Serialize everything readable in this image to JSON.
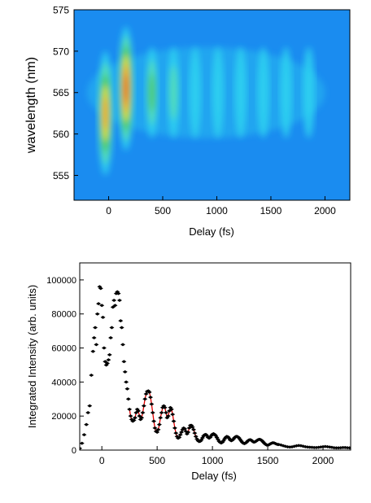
{
  "chart_data": [
    {
      "type": "heatmap",
      "xlabel": "Delay (fs)",
      "ylabel": "wavelength (nm)",
      "xlim": [
        -320,
        2230
      ],
      "ylim": [
        552,
        575
      ],
      "xticks": [
        "0",
        "500",
        "1000",
        "1500",
        "2000"
      ],
      "xtick_values": [
        0,
        500,
        1000,
        1500,
        2000
      ],
      "yticks": [
        "555",
        "560",
        "565",
        "570",
        "575"
      ],
      "ytick_values": [
        555,
        560,
        565,
        570,
        575
      ],
      "colormap": [
        "#1a8cf0",
        "#2fd5f0",
        "#5be0a8",
        "#4ec23a",
        "#ffe000",
        "#ff8800",
        "#e81a00"
      ],
      "background_color": "#1a8cf0",
      "spectral_center_nm": 565,
      "oscillation_period_fs": 210,
      "intensity_peaks": [
        {
          "delay": -30,
          "wavelength": 562.5,
          "intensity": 0.8
        },
        {
          "delay": 160,
          "wavelength": 565.5,
          "intensity": 1.0
        },
        {
          "delay": 400,
          "wavelength": 565,
          "intensity": 0.42
        },
        {
          "delay": 600,
          "wavelength": 565,
          "intensity": 0.32
        },
        {
          "delay": 800,
          "wavelength": 565,
          "intensity": 0.22
        },
        {
          "delay": 1010,
          "wavelength": 565,
          "intensity": 0.16
        },
        {
          "delay": 1220,
          "wavelength": 565,
          "intensity": 0.13
        },
        {
          "delay": 1430,
          "wavelength": 565,
          "intensity": 0.1
        },
        {
          "delay": 1640,
          "wavelength": 565,
          "intensity": 0.08
        },
        {
          "delay": 1850,
          "wavelength": 565,
          "intensity": 0.06
        }
      ]
    },
    {
      "type": "scatter",
      "xlabel": "Delay (fs)",
      "ylabel": "Integrated Intensity (arb. units)",
      "xlim": [
        -200,
        2250
      ],
      "ylim": [
        0,
        110000
      ],
      "xticks": [
        "0",
        "500",
        "1000",
        "1500",
        "2000"
      ],
      "xtick_values": [
        0,
        500,
        1000,
        1500,
        2000
      ],
      "yticks": [
        "0",
        "20000",
        "40000",
        "60000",
        "80000",
        "100000"
      ],
      "ytick_values": [
        0,
        20000,
        40000,
        60000,
        80000,
        100000
      ],
      "marker_color": "#000000",
      "fit_color": "#e00000",
      "points": [
        [
          -200,
          1000
        ],
        [
          -180,
          4000
        ],
        [
          -160,
          9000
        ],
        [
          -140,
          15000
        ],
        [
          -125,
          22000
        ],
        [
          -110,
          26000
        ],
        [
          -95,
          44000
        ],
        [
          -80,
          58000
        ],
        [
          -70,
          66000
        ],
        [
          -60,
          72000
        ],
        [
          -50,
          62000
        ],
        [
          -40,
          80000
        ],
        [
          -30,
          86000
        ],
        [
          -20,
          96000
        ],
        [
          -10,
          95000
        ],
        [
          0,
          85000
        ],
        [
          10,
          78000
        ],
        [
          20,
          60000
        ],
        [
          30,
          52000
        ],
        [
          40,
          50000
        ],
        [
          50,
          51000
        ],
        [
          60,
          53000
        ],
        [
          70,
          56000
        ],
        [
          80,
          66000
        ],
        [
          90,
          72000
        ],
        [
          100,
          84000
        ],
        [
          110,
          88000
        ],
        [
          120,
          85000
        ],
        [
          130,
          92000
        ],
        [
          140,
          93000
        ],
        [
          150,
          92000
        ],
        [
          160,
          88000
        ],
        [
          170,
          76000
        ],
        [
          180,
          72000
        ],
        [
          190,
          62000
        ],
        [
          200,
          52000
        ],
        [
          210,
          46000
        ],
        [
          220,
          40000
        ],
        [
          230,
          36000
        ],
        [
          240,
          30000
        ],
        [
          250,
          24000
        ],
        [
          260,
          20000
        ],
        [
          270,
          18000
        ],
        [
          280,
          17000
        ],
        [
          290,
          17500
        ],
        [
          300,
          19000
        ],
        [
          310,
          22000
        ],
        [
          320,
          24000
        ],
        [
          330,
          23000
        ],
        [
          340,
          20000
        ],
        [
          350,
          18000
        ],
        [
          360,
          19000
        ],
        [
          370,
          22000
        ],
        [
          380,
          26000
        ],
        [
          390,
          30000
        ],
        [
          400,
          33000
        ],
        [
          410,
          34500
        ],
        [
          420,
          34800
        ],
        [
          430,
          34000
        ],
        [
          440,
          31000
        ],
        [
          450,
          27000
        ],
        [
          460,
          22000
        ],
        [
          470,
          17000
        ],
        [
          480,
          13000
        ],
        [
          490,
          11000
        ],
        [
          500,
          10500
        ],
        [
          510,
          12000
        ],
        [
          520,
          15000
        ],
        [
          530,
          19000
        ],
        [
          540,
          22000
        ],
        [
          550,
          25000
        ],
        [
          560,
          26000
        ],
        [
          570,
          25000
        ],
        [
          580,
          22000
        ],
        [
          590,
          19000
        ],
        [
          600,
          20000
        ],
        [
          610,
          23000
        ],
        [
          620,
          25000
        ],
        [
          630,
          24000
        ],
        [
          640,
          21000
        ],
        [
          650,
          17000
        ],
        [
          660,
          13000
        ],
        [
          670,
          10000
        ],
        [
          680,
          8000
        ],
        [
          690,
          7000
        ],
        [
          700,
          7500
        ],
        [
          710,
          9000
        ],
        [
          720,
          10500
        ],
        [
          730,
          12000
        ],
        [
          740,
          13000
        ],
        [
          750,
          12500
        ],
        [
          760,
          11000
        ],
        [
          770,
          9500
        ],
        [
          780,
          10500
        ],
        [
          790,
          13000
        ],
        [
          800,
          14500
        ],
        [
          810,
          14500
        ],
        [
          820,
          13500
        ],
        [
          830,
          12000
        ],
        [
          840,
          10000
        ],
        [
          850,
          8000
        ],
        [
          860,
          6500
        ],
        [
          870,
          5500
        ],
        [
          880,
          5000
        ],
        [
          890,
          5200
        ],
        [
          900,
          6000
        ],
        [
          910,
          7200
        ],
        [
          920,
          8300
        ],
        [
          930,
          9000
        ],
        [
          940,
          9200
        ],
        [
          950,
          8500
        ],
        [
          960,
          7500
        ],
        [
          970,
          7000
        ],
        [
          980,
          7500
        ],
        [
          990,
          8500
        ],
        [
          1000,
          9300
        ],
        [
          1010,
          9600
        ],
        [
          1020,
          9200
        ],
        [
          1030,
          8500
        ],
        [
          1040,
          7400
        ],
        [
          1050,
          6300
        ],
        [
          1060,
          5200
        ],
        [
          1070,
          4500
        ],
        [
          1080,
          4200
        ],
        [
          1090,
          4600
        ],
        [
          1100,
          5500
        ],
        [
          1110,
          6600
        ],
        [
          1120,
          7500
        ],
        [
          1130,
          8000
        ],
        [
          1140,
          7800
        ],
        [
          1150,
          7000
        ],
        [
          1160,
          6000
        ],
        [
          1170,
          5500
        ],
        [
          1180,
          5800
        ],
        [
          1190,
          6500
        ],
        [
          1200,
          7300
        ],
        [
          1210,
          7900
        ],
        [
          1220,
          8100
        ],
        [
          1230,
          7800
        ],
        [
          1240,
          7200
        ],
        [
          1250,
          6300
        ],
        [
          1260,
          5400
        ],
        [
          1270,
          4600
        ],
        [
          1280,
          4000
        ],
        [
          1290,
          3800
        ],
        [
          1300,
          4100
        ],
        [
          1310,
          4700
        ],
        [
          1320,
          5400
        ],
        [
          1330,
          5900
        ],
        [
          1340,
          6100
        ],
        [
          1350,
          5900
        ],
        [
          1360,
          5300
        ],
        [
          1370,
          4800
        ],
        [
          1380,
          4700
        ],
        [
          1390,
          5000
        ],
        [
          1400,
          5500
        ],
        [
          1410,
          6000
        ],
        [
          1420,
          6300
        ],
        [
          1430,
          6300
        ],
        [
          1440,
          6000
        ],
        [
          1450,
          5400
        ],
        [
          1460,
          4700
        ],
        [
          1470,
          4000
        ],
        [
          1480,
          3400
        ],
        [
          1490,
          3000
        ],
        [
          1500,
          2900
        ],
        [
          1510,
          3100
        ],
        [
          1520,
          3500
        ],
        [
          1530,
          3900
        ],
        [
          1540,
          4200
        ],
        [
          1550,
          4300
        ],
        [
          1560,
          4100
        ],
        [
          1570,
          3800
        ],
        [
          1580,
          3500
        ],
        [
          1590,
          3300
        ],
        [
          1600,
          3300
        ],
        [
          1620,
          3000
        ],
        [
          1640,
          2600
        ],
        [
          1660,
          2200
        ],
        [
          1680,
          1900
        ],
        [
          1700,
          1800
        ],
        [
          1720,
          1900
        ],
        [
          1740,
          2200
        ],
        [
          1760,
          2500
        ],
        [
          1780,
          2700
        ],
        [
          1800,
          2600
        ],
        [
          1820,
          2300
        ],
        [
          1840,
          2000
        ],
        [
          1860,
          1800
        ],
        [
          1880,
          1700
        ],
        [
          1900,
          1600
        ],
        [
          1920,
          1500
        ],
        [
          1940,
          1500
        ],
        [
          1960,
          1600
        ],
        [
          1980,
          1800
        ],
        [
          2000,
          2000
        ],
        [
          2020,
          2100
        ],
        [
          2040,
          2000
        ],
        [
          2060,
          1800
        ],
        [
          2080,
          1600
        ],
        [
          2100,
          1400
        ],
        [
          2120,
          1300
        ],
        [
          2140,
          1300
        ],
        [
          2160,
          1400
        ],
        [
          2180,
          1500
        ],
        [
          2200,
          1500
        ],
        [
          2220,
          1400
        ],
        [
          2240,
          1300
        ]
      ]
    }
  ]
}
